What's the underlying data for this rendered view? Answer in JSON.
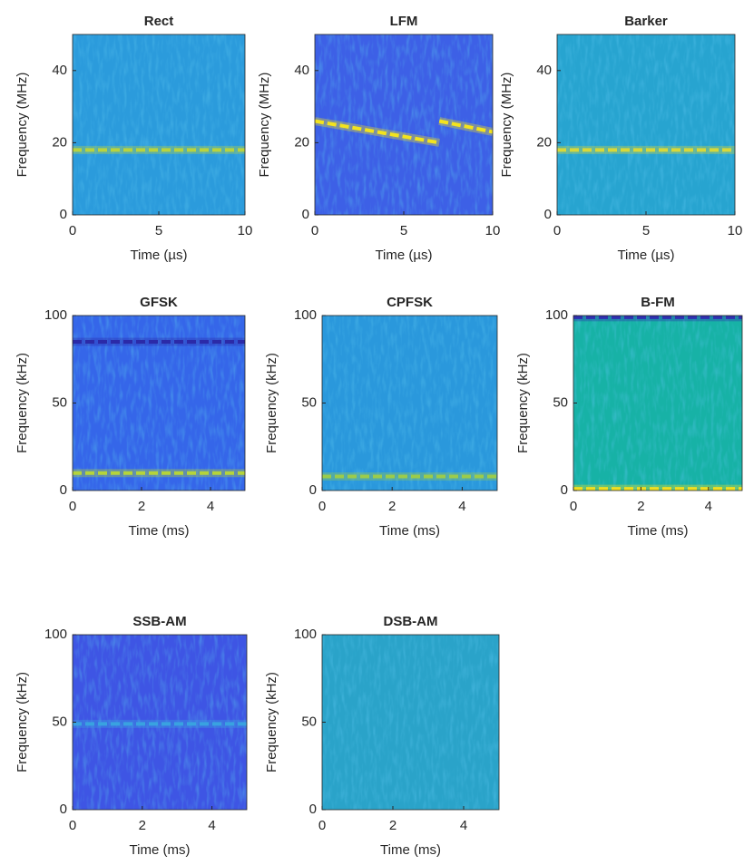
{
  "chart_data": [
    {
      "type": "spectrogram",
      "title": "Rect",
      "xlabel": "Time (µs)",
      "ylabel": "Frequency (MHz)",
      "xlim": [
        0,
        10
      ],
      "ylim": [
        0,
        50
      ],
      "xticks": [
        0,
        5,
        10
      ],
      "yticks": [
        0,
        20,
        40
      ],
      "color": "#2b9bdc",
      "lines": [
        {
          "x": [
            0,
            10
          ],
          "y": [
            18,
            18
          ],
          "color": "#b9d33f"
        }
      ]
    },
    {
      "type": "spectrogram",
      "title": "LFM",
      "xlabel": "Time (µs)",
      "ylabel": "Frequency (MHz)",
      "xlim": [
        0,
        10
      ],
      "ylim": [
        0,
        50
      ],
      "xticks": [
        0,
        5,
        10
      ],
      "yticks": [
        0,
        20,
        40
      ],
      "color": "#3d60e6",
      "lines": [
        {
          "x": [
            0,
            7
          ],
          "y": [
            26,
            20
          ],
          "color": "#f3e31e"
        },
        {
          "x": [
            7,
            10
          ],
          "y": [
            26,
            23
          ],
          "color": "#f3e31e"
        }
      ]
    },
    {
      "type": "spectrogram",
      "title": "Barker",
      "xlabel": "Time (µs)",
      "ylabel": "Frequency (MHz)",
      "xlim": [
        0,
        10
      ],
      "ylim": [
        0,
        50
      ],
      "xticks": [
        0,
        5,
        10
      ],
      "yticks": [
        0,
        20,
        40
      ],
      "color": "#27a4d0",
      "lines": [
        {
          "x": [
            0,
            10
          ],
          "y": [
            18,
            18
          ],
          "color": "#d8d83a"
        }
      ]
    },
    {
      "type": "spectrogram",
      "title": "GFSK",
      "xlabel": "Time (ms)",
      "ylabel": "Frequency (kHz)",
      "xlim": [
        0,
        5
      ],
      "ylim": [
        0,
        100
      ],
      "xticks": [
        0,
        2,
        4
      ],
      "yticks": [
        0,
        50,
        100
      ],
      "color": "#3566e9",
      "lines": [
        {
          "x": [
            0,
            5
          ],
          "y": [
            10,
            10
          ],
          "color": "#b5d43a"
        },
        {
          "x": [
            0,
            5
          ],
          "y": [
            85,
            85
          ],
          "color": "#2b2aa8"
        }
      ]
    },
    {
      "type": "spectrogram",
      "title": "CPFSK",
      "xlabel": "Time (ms)",
      "ylabel": "Frequency (kHz)",
      "xlim": [
        0,
        5
      ],
      "ylim": [
        0,
        100
      ],
      "xticks": [
        0,
        2,
        4
      ],
      "yticks": [
        0,
        50,
        100
      ],
      "color": "#2a98dc",
      "lines": [
        {
          "x": [
            0,
            5
          ],
          "y": [
            8,
            8
          ],
          "color": "#9ccc4a"
        }
      ]
    },
    {
      "type": "spectrogram",
      "title": "B-FM",
      "xlabel": "Time (ms)",
      "ylabel": "Frequency (kHz)",
      "xlim": [
        0,
        5
      ],
      "ylim": [
        0,
        100
      ],
      "xticks": [
        0,
        2,
        4
      ],
      "yticks": [
        0,
        50,
        100
      ],
      "color": "#17b2a6",
      "lines": [
        {
          "x": [
            0,
            5
          ],
          "y": [
            1,
            1
          ],
          "color": "#f0df20"
        },
        {
          "x": [
            0,
            5
          ],
          "y": [
            99,
            99
          ],
          "color": "#2f2fb0"
        }
      ]
    },
    {
      "type": "spectrogram",
      "title": "SSB-AM",
      "xlabel": "Time (ms)",
      "ylabel": "Frequency (kHz)",
      "xlim": [
        0,
        5
      ],
      "ylim": [
        0,
        100
      ],
      "xticks": [
        0,
        2,
        4
      ],
      "yticks": [
        0,
        50,
        100
      ],
      "color": "#3e55e4",
      "lines": [
        {
          "x": [
            0,
            5
          ],
          "y": [
            49,
            49
          ],
          "color": "#39a2e0"
        }
      ]
    },
    {
      "type": "spectrogram",
      "title": "DSB-AM",
      "xlabel": "Time (ms)",
      "ylabel": "Frequency (kHz)",
      "xlim": [
        0,
        5
      ],
      "ylim": [
        0,
        100
      ],
      "xticks": [
        0,
        2,
        4
      ],
      "yticks": [
        0,
        50,
        100
      ],
      "color": "#2aa3c9",
      "lines": []
    }
  ]
}
